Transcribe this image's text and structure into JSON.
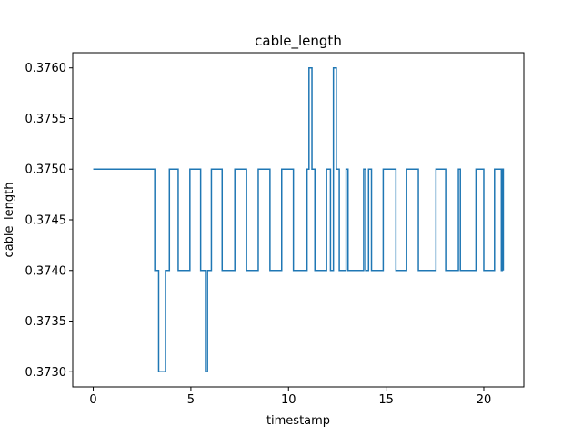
{
  "chart_data": {
    "type": "line",
    "title": "cable_length",
    "xlabel": "timestamp",
    "ylabel": "cable_length",
    "xlim": [
      -1.05,
      22.05
    ],
    "ylim": [
      0.37285,
      0.37615
    ],
    "xticks": [
      0,
      5,
      10,
      15,
      20
    ],
    "xtick_labels": [
      "0",
      "5",
      "10",
      "15",
      "20"
    ],
    "yticks": [
      0.373,
      0.3735,
      0.374,
      0.3745,
      0.375,
      0.3755,
      0.376
    ],
    "ytick_labels": [
      "0.3730",
      "0.3735",
      "0.3740",
      "0.3745",
      "0.3750",
      "0.3755",
      "0.3760"
    ],
    "grid": false,
    "colors": {
      "line": "#1f77b4"
    },
    "series": [
      {
        "step": "post",
        "x": [
          0,
          3.15,
          3.35,
          3.7,
          3.9,
          4.35,
          4.95,
          5.5,
          5.75,
          5.85,
          6.05,
          6.6,
          7.25,
          7.85,
          8.45,
          9.05,
          9.65,
          10.25,
          10.95,
          11.05,
          11.2,
          11.35,
          11.95,
          12.15,
          12.3,
          12.45,
          12.6,
          12.95,
          13.05,
          13.85,
          13.95,
          14.1,
          14.25,
          14.85,
          15.5,
          16.05,
          16.65,
          17.55,
          18.05,
          18.7,
          18.8,
          19.6,
          20.0,
          20.55,
          20.9,
          20.95,
          21.0
        ],
        "y": [
          0.375,
          0.374,
          0.373,
          0.374,
          0.375,
          0.374,
          0.375,
          0.374,
          0.373,
          0.374,
          0.375,
          0.374,
          0.375,
          0.374,
          0.375,
          0.374,
          0.375,
          0.374,
          0.375,
          0.376,
          0.375,
          0.374,
          0.375,
          0.374,
          0.376,
          0.375,
          0.374,
          0.375,
          0.374,
          0.375,
          0.374,
          0.375,
          0.374,
          0.375,
          0.374,
          0.375,
          0.374,
          0.375,
          0.374,
          0.375,
          0.374,
          0.375,
          0.374,
          0.375,
          0.374,
          0.375,
          0.374
        ]
      }
    ]
  }
}
